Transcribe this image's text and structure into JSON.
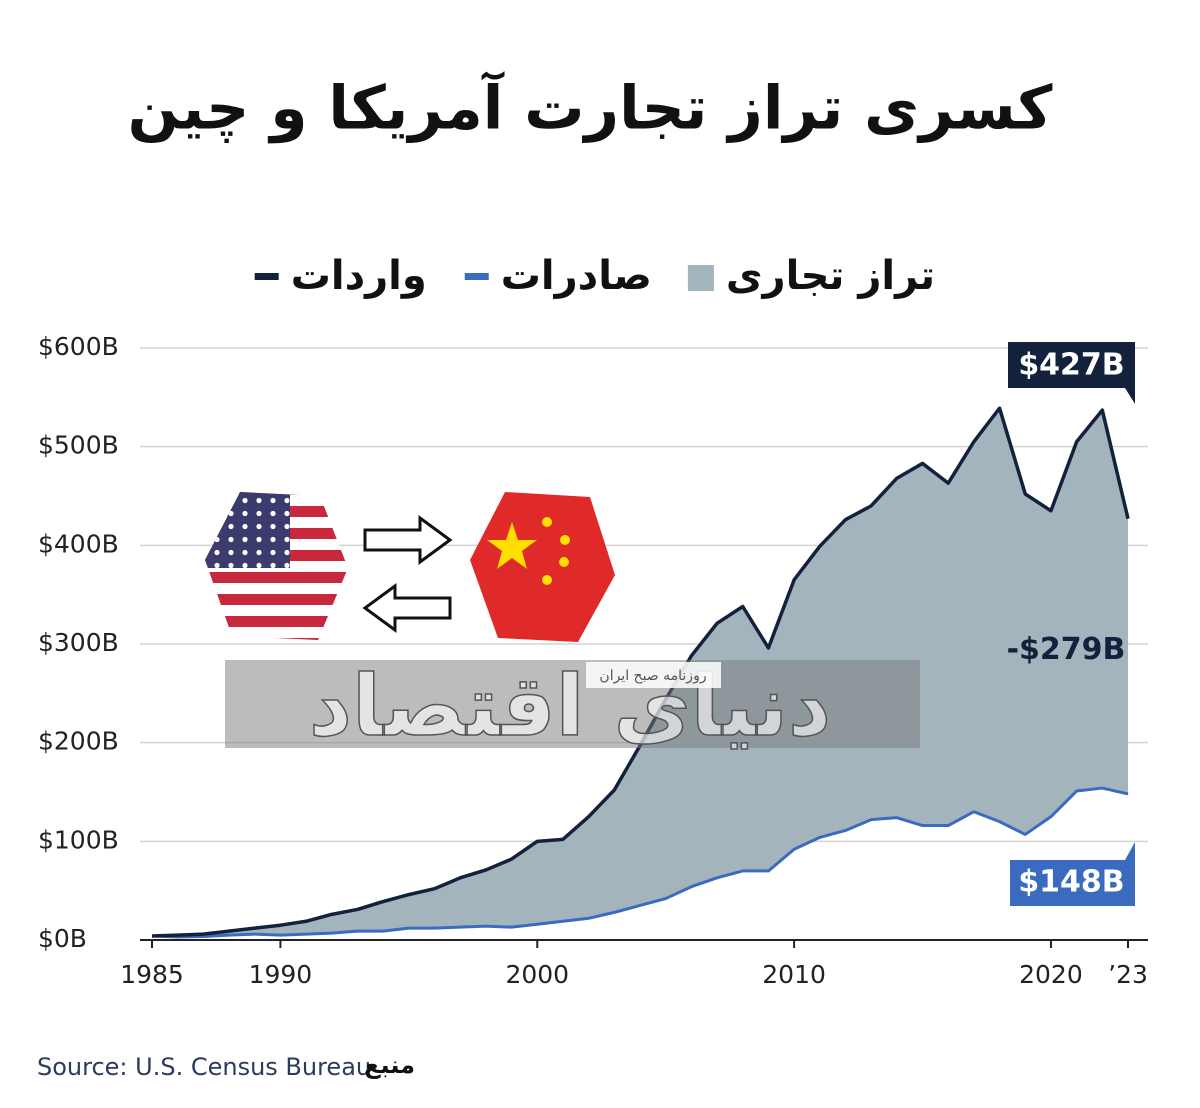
{
  "chart_data": {
    "type": "area_between",
    "title": "کسری تراز تجارت آمریکا و چین",
    "x": [
      1985,
      1986,
      1987,
      1988,
      1989,
      1990,
      1991,
      1992,
      1993,
      1994,
      1995,
      1996,
      1997,
      1998,
      1999,
      2000,
      2001,
      2002,
      2003,
      2004,
      2005,
      2006,
      2007,
      2008,
      2009,
      2010,
      2011,
      2012,
      2013,
      2014,
      2015,
      2016,
      2017,
      2018,
      2019,
      2020,
      2021,
      2022,
      2023
    ],
    "series": [
      {
        "name": "واردات",
        "color": "#14213d",
        "end_label": "$427B",
        "values": [
          4,
          5,
          6,
          9,
          12,
          15,
          19,
          26,
          31,
          39,
          46,
          52,
          63,
          71,
          82,
          100,
          102,
          125,
          152,
          197,
          244,
          288,
          321,
          338,
          296,
          365,
          399,
          426,
          440,
          468,
          483,
          463,
          505,
          539,
          452,
          435,
          505,
          537,
          427
        ]
      },
      {
        "name": "صادرات",
        "color": "#3a6bbf",
        "end_label": "$148B",
        "values": [
          4,
          3,
          3.5,
          5,
          6,
          5,
          6,
          7,
          9,
          9,
          12,
          12,
          13,
          14,
          13,
          16,
          19,
          22,
          28,
          35,
          42,
          54,
          63,
          70,
          70,
          92,
          104,
          111,
          122,
          124,
          116,
          116,
          130,
          120,
          107,
          125,
          151,
          154,
          148
        ]
      }
    ],
    "balance": {
      "name": "تراز تجاری",
      "color": "#a3b4bd",
      "label": "-$279B"
    },
    "xlim": [
      1985,
      2023
    ],
    "xticks": [
      1985,
      1990,
      2000,
      2010,
      2020,
      {
        "value": 2023,
        "label": "’23"
      }
    ],
    "ylim": [
      0,
      600
    ],
    "yticks": [
      {
        "value": 0,
        "label": "$0B"
      },
      {
        "value": 100,
        "label": "$100B"
      },
      {
        "value": 200,
        "label": "$200B"
      },
      {
        "value": 300,
        "label": "$300B"
      },
      {
        "value": 400,
        "label": "$400B"
      },
      {
        "value": 500,
        "label": "$500B"
      },
      {
        "value": 600,
        "label": "$600B"
      }
    ],
    "grid": true,
    "source": "Source: U.S. Census Bureau",
    "source_label": "منبع",
    "watermark": {
      "main": "دنیای اقتصاد",
      "sub": "روزنامه صبح ایران"
    }
  }
}
